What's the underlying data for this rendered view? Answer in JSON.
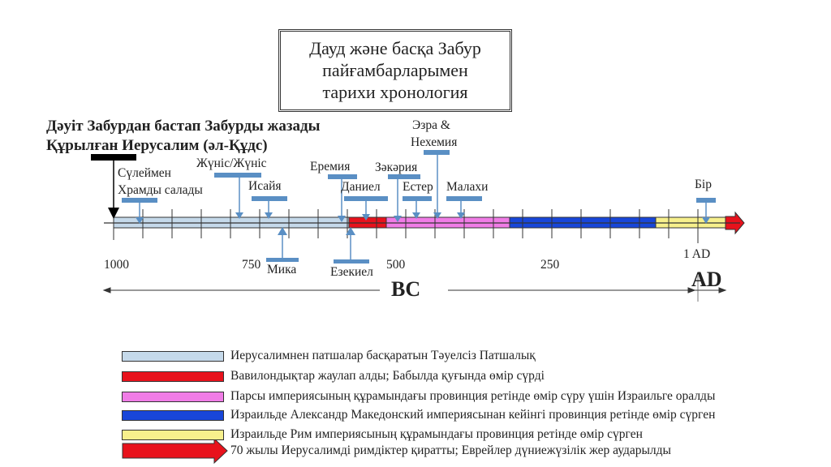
{
  "title_lines": [
    "Дауд және басқа Забур",
    "пайғамбарларымен",
    "тарихи хронология"
  ],
  "heading1": "Дәуіт Забурдан бастап Забурды жазады",
  "heading2": "Құрылған Иерусалим (әл-Құдс)",
  "events": {
    "suleimen": "Сүлеймен",
    "suleimen2": "Храмды салады",
    "zhunis": "Жүніс/Жүніс",
    "isaiah": "Исайя",
    "mika": "Мика",
    "jeremiah": "Еремия",
    "ezekiel": "Езекиел",
    "daniel": "Даниел",
    "zechariah": "Зәкәрия",
    "esther": "Естер",
    "ezra": "Эзра &",
    "ezra2": "Нехемия",
    "malachi": "Малахи",
    "one": "Бір"
  },
  "axis": {
    "ticks": [
      "1000",
      "750",
      "500",
      "250",
      "1 AD"
    ],
    "bc": "BC",
    "ad": "AD"
  },
  "colors": {
    "kingdom": "#c5d9ea",
    "babylon": "#e8121c",
    "persia": "#f07ce6",
    "greek": "#1846d9",
    "rome": "#f7f08c",
    "marker": "#5a8fc4",
    "dark": "#000000"
  },
  "legend": [
    {
      "text": "Иерусалимнен патшалар басқаратын Тәуелсіз Патшалық",
      "color": "#c5d9ea",
      "arrow": false
    },
    {
      "text": "Вавилондықтар жаулап алды; Бабылда қуғында өмір сүрді",
      "color": "#e8121c",
      "arrow": false
    },
    {
      "text": "Парсы империясының құрамындағы провинция ретінде өмір сүру үшін Израильге оралды",
      "color": "#f07ce6",
      "arrow": false
    },
    {
      "text": "Израильде Александр Македонский империясынан кейінгі провинция ретінде өмір сүрген",
      "color": "#1846d9",
      "arrow": false
    },
    {
      "text": "Израильде Рим империясының құрамындағы провинция ретінде өмір сүрген",
      "color": "#f7f08c",
      "arrow": false
    },
    {
      "text": "70 жылы Иерусалимді римдіктер қиратты; Еврейлер дүниежүзілік жер аударылды",
      "color": "#e8121c",
      "arrow": true
    }
  ]
}
